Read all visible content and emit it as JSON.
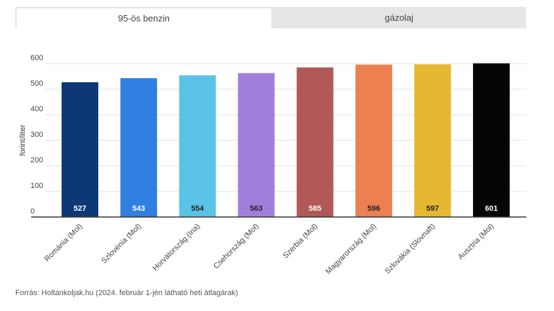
{
  "tabs": [
    {
      "label": "95-ös benzin",
      "active": true
    },
    {
      "label": "gázolaj",
      "active": false
    }
  ],
  "source": "Forrás: Holtankoljak.hu (2024. február 1-jén látható heti átlagárak)",
  "chart_data": {
    "type": "bar",
    "ylabel": "forint/liter",
    "xlabel": "",
    "ylim": [
      0,
      600
    ],
    "yticks": [
      0,
      100,
      200,
      300,
      400,
      500,
      600
    ],
    "grid": true,
    "categories": [
      "Románia (Mol)",
      "Szlovénia (Mol)",
      "Horvátország (Ina)",
      "Csehország (Mol)",
      "Szerbia (Mol)",
      "Magyarország (Mol)",
      "Szlovákia (Slovnaft)",
      "Ausztria (Mol)"
    ],
    "values": [
      527,
      543,
      554,
      563,
      585,
      596,
      597,
      601
    ],
    "colors": [
      "#0d3875",
      "#2f80e0",
      "#5bc4e6",
      "#a07fdc",
      "#b25858",
      "#ec8050",
      "#e4b832",
      "#050505"
    ],
    "label_colors": [
      "#ffffff",
      "#ffffff",
      "#222222",
      "#222222",
      "#ffffff",
      "#222222",
      "#222222",
      "#ffffff"
    ]
  }
}
